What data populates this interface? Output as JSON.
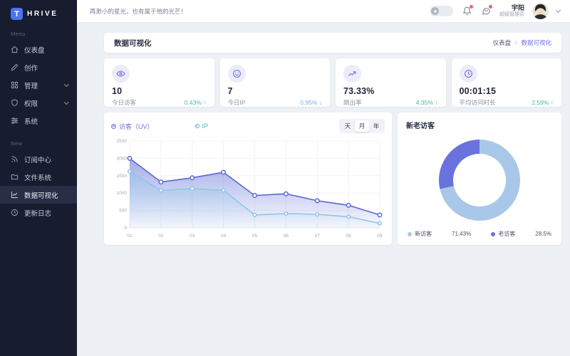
{
  "brand": {
    "logo_letter": "T",
    "logo_rest": "HRIVE"
  },
  "topbar": {
    "greeting": "再渺小的星光，也有属于他的光芒！",
    "user_name": "宇阳",
    "user_role": "超级管理员",
    "icons": [
      "theme-toggle",
      "bell-icon",
      "chat-icon",
      "chevron-down-icon"
    ]
  },
  "sidebar": {
    "menu_label": "Menu",
    "new_label": "New",
    "menu": [
      {
        "label": "仪表盘",
        "icon": "home-icon"
      },
      {
        "label": "创作",
        "icon": "pencil-icon"
      },
      {
        "label": "管理",
        "icon": "grid-icon",
        "expandable": true
      },
      {
        "label": "权限",
        "icon": "shield-icon",
        "expandable": true
      },
      {
        "label": "系统",
        "icon": "sliders-icon"
      }
    ],
    "new": [
      {
        "label": "订阅中心",
        "icon": "rss-icon"
      },
      {
        "label": "文件系统",
        "icon": "folder-icon"
      },
      {
        "label": "数据可视化",
        "icon": "chart-icon",
        "active": true
      },
      {
        "label": "更新日志",
        "icon": "history-icon"
      }
    ]
  },
  "page": {
    "title": "数据可视化",
    "breadcrumb": {
      "parent": "仪表盘",
      "separator": "/",
      "current": "数据可视化"
    }
  },
  "stats": [
    {
      "icon": "eye-icon",
      "value": "10",
      "label": "今日访客",
      "delta": "0.43% ↑",
      "color": "#3fbf8f"
    },
    {
      "icon": "smile-icon",
      "value": "7",
      "label": "今日IP",
      "delta": "0.95% ↓",
      "color": "#74b2e8"
    },
    {
      "icon": "trend-icon",
      "value": "73.33%",
      "label": "跳出率",
      "delta": "4.35% ↑",
      "color": "#3fbf8f"
    },
    {
      "icon": "clock-icon",
      "value": "00:01:15",
      "label": "平均访问时长",
      "delta": "2.59% ↑",
      "color": "#3fbf8f"
    }
  ],
  "chart_data": [
    {
      "type": "area",
      "x": [
        "01",
        "02",
        "03",
        "04",
        "05",
        "06",
        "07",
        "08",
        "09"
      ],
      "series": [
        {
          "name": "访客（UV）",
          "color": "#5a68d5",
          "values": [
            2000,
            1320,
            1440,
            1600,
            930,
            980,
            780,
            650,
            370
          ]
        },
        {
          "name": "IP",
          "color": "#8ec6e6",
          "values": [
            1620,
            1080,
            1130,
            1080,
            370,
            410,
            390,
            320,
            130
          ]
        }
      ],
      "ylim": [
        0,
        2500
      ],
      "yticks": [
        0,
        500,
        1000,
        1500,
        2000,
        2500
      ],
      "grid": true,
      "legend_position": "top-left",
      "period_options": [
        "天",
        "月",
        "年"
      ],
      "selected_period": "月"
    },
    {
      "type": "pie",
      "title": "新老访客",
      "slices": [
        {
          "label": "新访客",
          "value": 71.43,
          "display": "71.43%",
          "color": "#a9c8e9"
        },
        {
          "label": "老访客",
          "value": 28.5,
          "display": "28.5%",
          "color": "#6a72dd"
        }
      ],
      "donut": true,
      "legend_position": "bottom"
    }
  ]
}
